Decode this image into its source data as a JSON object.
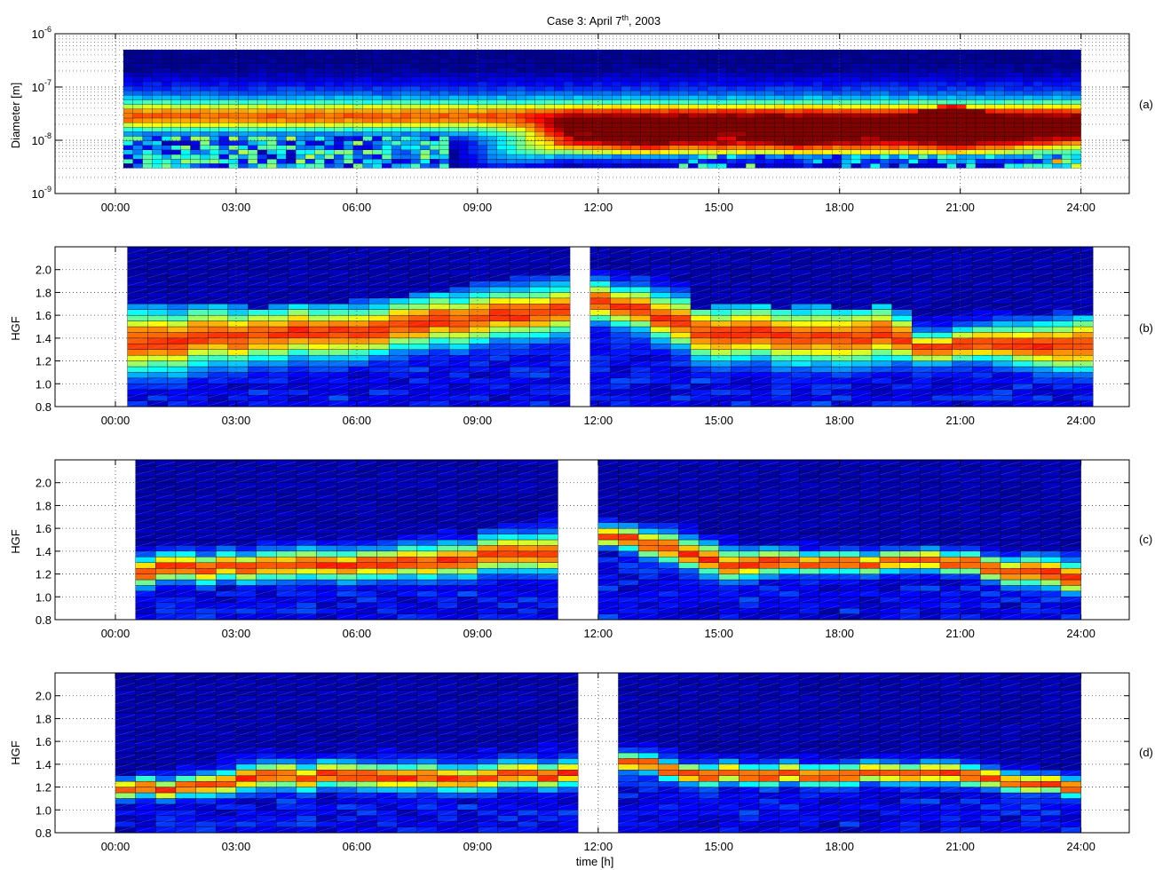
{
  "figure": {
    "title_main": "Case 3: April 7",
    "title_sup": "th",
    "title_tail": ", 2003",
    "xlabel": "time [h]"
  },
  "colors": {
    "colormap": [
      "#00008f",
      "#0000ff",
      "#0080ff",
      "#00ffff",
      "#80ff80",
      "#ffff00",
      "#ff8000",
      "#ff0000",
      "#800000"
    ],
    "grid": "#444444"
  },
  "chart_data": [
    {
      "type": "heatmap",
      "panel": "(a)",
      "ylabel": "Diameter [m]",
      "yscale": "log",
      "ylim": [
        1e-09,
        1e-06
      ],
      "xlim": [
        -1.5,
        25.2
      ],
      "yticks": [
        {
          "base": "10",
          "exp": "-9"
        },
        {
          "base": "10",
          "exp": "-8"
        },
        {
          "base": "10",
          "exp": "-7"
        },
        {
          "base": "10",
          "exp": "-6"
        }
      ],
      "xticks": [
        "00:00",
        "03:00",
        "06:00",
        "09:00",
        "12:00",
        "15:00",
        "18:00",
        "21:00",
        "24:00"
      ],
      "data_x_range": [
        0.2,
        24.0
      ],
      "data_y_range": [
        3e-09,
        5e-07
      ],
      "description_ridges": [
        {
          "time": 13.2,
          "peak_log10_diameter": -7.65
        },
        {
          "time": 17.0,
          "peak_log10_diameter": -7.7
        },
        {
          "time": 20.8,
          "peak_log10_diameter": -7.3
        }
      ]
    },
    {
      "type": "heatmap",
      "panel": "(b)",
      "ylabel": "HGF",
      "ylim": [
        0.8,
        2.2
      ],
      "xlim": [
        -1.5,
        25.2
      ],
      "yticks": [
        "0.8",
        "1.0",
        "1.2",
        "1.4",
        "1.6",
        "1.8",
        "2.0"
      ],
      "xticks": [
        "00:00",
        "03:00",
        "06:00",
        "09:00",
        "12:00",
        "15:00",
        "18:00",
        "21:00",
        "24:00"
      ],
      "data_x_range": [
        0.3,
        24.0
      ],
      "gap": [
        11.3,
        11.6
      ],
      "profile": [
        {
          "t": 0.5,
          "center": 1.35,
          "width": 0.26,
          "top": 1.7
        },
        {
          "t": 3.0,
          "center": 1.42,
          "width": 0.22,
          "top": 1.68
        },
        {
          "t": 6.5,
          "center": 1.48,
          "width": 0.2,
          "top": 1.72
        },
        {
          "t": 9.0,
          "center": 1.58,
          "width": 0.2,
          "top": 1.88
        },
        {
          "t": 11.0,
          "center": 1.62,
          "width": 0.2,
          "top": 1.98
        },
        {
          "t": 12.3,
          "center": 1.72,
          "width": 0.15,
          "top": 2.0
        },
        {
          "t": 14.0,
          "center": 1.55,
          "width": 0.2,
          "top": 1.9
        },
        {
          "t": 14.5,
          "center": 1.45,
          "width": 0.22,
          "top": 1.7
        },
        {
          "t": 19.3,
          "center": 1.42,
          "width": 0.22,
          "top": 1.68
        },
        {
          "t": 19.9,
          "center": 1.32,
          "width": 0.12,
          "top": 1.62
        },
        {
          "t": 21.8,
          "center": 1.35,
          "width": 0.14,
          "top": 1.62
        },
        {
          "t": 24.0,
          "center": 1.35,
          "width": 0.22,
          "top": 1.64
        }
      ]
    },
    {
      "type": "heatmap",
      "panel": "(c)",
      "ylabel": "HGF",
      "ylim": [
        0.8,
        2.2
      ],
      "xlim": [
        -1.5,
        25.2
      ],
      "yticks": [
        "0.8",
        "1.0",
        "1.2",
        "1.4",
        "1.6",
        "1.8",
        "2.0"
      ],
      "xticks": [
        "00:00",
        "03:00",
        "06:00",
        "09:00",
        "12:00",
        "15:00",
        "18:00",
        "21:00",
        "24:00"
      ],
      "data_x_range": [
        0.5,
        24.0
      ],
      "gap": [
        11.0,
        11.9
      ],
      "profile": [
        {
          "t": 0.5,
          "center": 1.23,
          "width": 0.11,
          "top": 1.42
        },
        {
          "t": 3.0,
          "center": 1.27,
          "width": 0.11,
          "top": 1.48
        },
        {
          "t": 7.0,
          "center": 1.3,
          "width": 0.12,
          "top": 1.5
        },
        {
          "t": 10.8,
          "center": 1.38,
          "width": 0.15,
          "top": 1.68
        },
        {
          "t": 12.2,
          "center": 1.52,
          "width": 0.08,
          "top": 1.7
        },
        {
          "t": 14.0,
          "center": 1.42,
          "width": 0.12,
          "top": 1.62
        },
        {
          "t": 15.5,
          "center": 1.27,
          "width": 0.12,
          "top": 1.5
        },
        {
          "t": 17.0,
          "center": 1.3,
          "width": 0.08,
          "top": 1.46
        },
        {
          "t": 21.0,
          "center": 1.3,
          "width": 0.08,
          "top": 1.44
        },
        {
          "t": 23.0,
          "center": 1.2,
          "width": 0.12,
          "top": 1.42
        },
        {
          "t": 24.0,
          "center": 1.18,
          "width": 0.12,
          "top": 1.4
        }
      ]
    },
    {
      "type": "heatmap",
      "panel": "(d)",
      "ylabel": "HGF",
      "ylim": [
        0.8,
        2.2
      ],
      "xlim": [
        -1.5,
        25.2
      ],
      "yticks": [
        "0.8",
        "1.0",
        "1.2",
        "1.4",
        "1.6",
        "1.8",
        "2.0"
      ],
      "xticks": [
        "00:00",
        "03:00",
        "06:00",
        "09:00",
        "12:00",
        "15:00",
        "18:00",
        "21:00",
        "24:00"
      ],
      "data_x_range": [
        0.0,
        23.6
      ],
      "gap": [
        11.3,
        12.6
      ],
      "profile": [
        {
          "t": 0.0,
          "center": 1.17,
          "width": 0.07,
          "top": 1.33
        },
        {
          "t": 2.0,
          "center": 1.2,
          "width": 0.08,
          "top": 1.38
        },
        {
          "t": 3.0,
          "center": 1.27,
          "width": 0.1,
          "top": 1.5
        },
        {
          "t": 6.0,
          "center": 1.3,
          "width": 0.1,
          "top": 1.52
        },
        {
          "t": 9.0,
          "center": 1.27,
          "width": 0.1,
          "top": 1.52
        },
        {
          "t": 11.2,
          "center": 1.32,
          "width": 0.1,
          "top": 1.58
        },
        {
          "t": 12.8,
          "center": 1.42,
          "width": 0.07,
          "top": 1.6
        },
        {
          "t": 14.5,
          "center": 1.32,
          "width": 0.08,
          "top": 1.5
        },
        {
          "t": 21.0,
          "center": 1.3,
          "width": 0.08,
          "top": 1.48
        },
        {
          "t": 23.6,
          "center": 1.2,
          "width": 0.07,
          "top": 1.36
        }
      ]
    }
  ],
  "panels": {
    "a": {
      "ylabel": "Diameter [m]",
      "tag": "(a)"
    },
    "b": {
      "ylabel": "HGF",
      "tag": "(b)"
    },
    "c": {
      "ylabel": "HGF",
      "tag": "(c)"
    },
    "d": {
      "ylabel": "HGF",
      "tag": "(d)"
    }
  }
}
